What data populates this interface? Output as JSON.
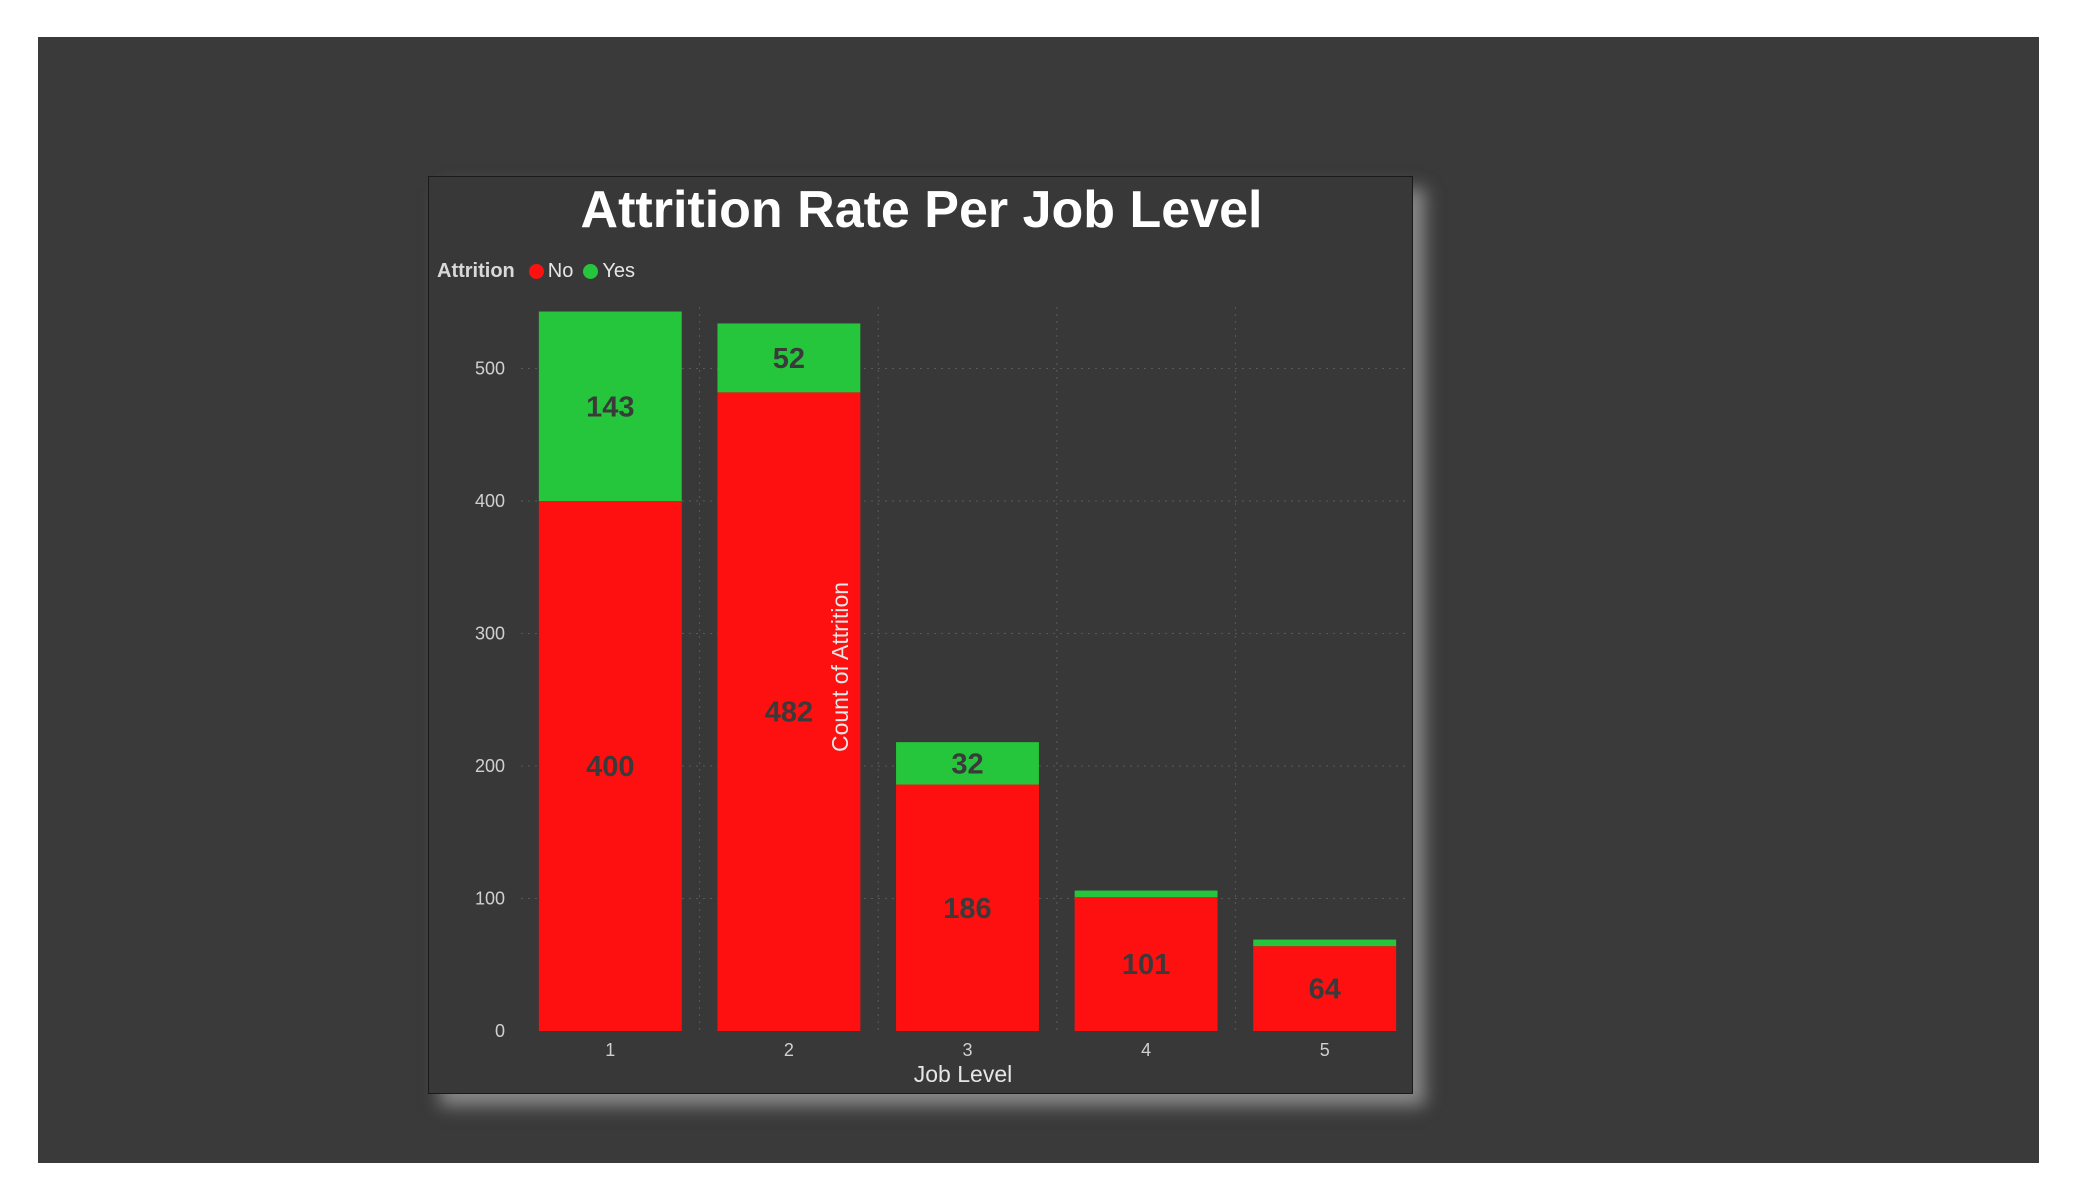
{
  "colors": {
    "no": "#ff1010",
    "yes": "#26c63c",
    "background": "#3a3a3a",
    "panel": "#383838",
    "grid": "#5a5a5a",
    "tick_text": "#d0d0d0",
    "data_label": "#3a3a3a"
  },
  "chart_data": {
    "type": "bar",
    "stacked": true,
    "title": "Attrition Rate Per Job Level",
    "xlabel": "Job Level",
    "ylabel": "Count of Attrition",
    "legend_title": "Attrition",
    "legend_position": "top-left",
    "categories": [
      "1",
      "2",
      "3",
      "4",
      "5"
    ],
    "series": [
      {
        "name": "No",
        "values": [
          400,
          482,
          186,
          101,
          64
        ],
        "labels": [
          "400",
          "482",
          "186",
          "101",
          "64"
        ]
      },
      {
        "name": "Yes",
        "values": [
          143,
          52,
          32,
          5,
          5
        ],
        "labels": [
          "143",
          "52",
          "32",
          "",
          ""
        ]
      }
    ],
    "ylim": [
      0,
      550
    ],
    "yticks": [
      0,
      100,
      200,
      300,
      400,
      500
    ],
    "ytick_labels": [
      "0",
      "100",
      "200",
      "300",
      "400",
      "500"
    ],
    "grid": true
  }
}
